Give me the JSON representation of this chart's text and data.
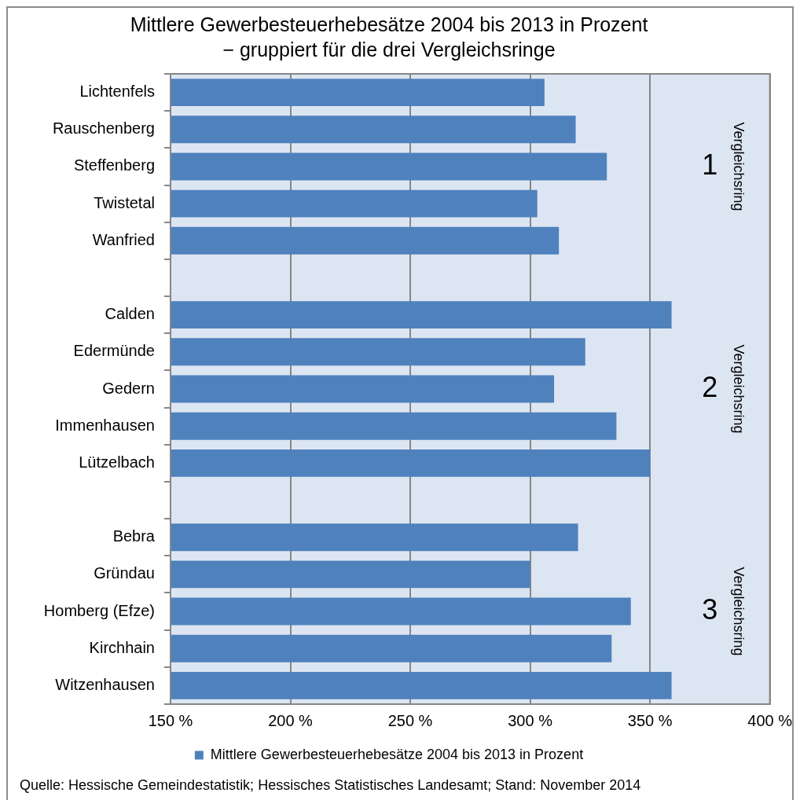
{
  "chart_data": {
    "type": "bar",
    "orientation": "horizontal",
    "title": "Mittlere Gewerbesteuerhebesätze 2004 bis 2013 in Prozent",
    "subtitle": "− gruppiert für die drei Vergleichsringe",
    "categories": [
      "Lichtenfels",
      "Rauschenberg",
      "Steffenberg",
      "Twistetal",
      "Wanfried",
      null,
      "Calden",
      "Edermünde",
      "Gedern",
      "Immenhausen",
      "Lützelbach",
      null,
      "Bebra",
      "Gründau",
      "Homberg (Efze)",
      "Kirchhain",
      "Witzenhausen"
    ],
    "series": [
      {
        "name": "Mittlere Gewerbesteuerhebesätze 2004 bis 2013 in Prozent",
        "color": "#4f81bd",
        "values": [
          306,
          319,
          332,
          303,
          312,
          null,
          359,
          323,
          310,
          336,
          350,
          null,
          320,
          300,
          342,
          334,
          359
        ]
      }
    ],
    "xlim": [
      150,
      400
    ],
    "xticks": [
      {
        "value": 150,
        "label": "150 %"
      },
      {
        "value": 200,
        "label": "200 %"
      },
      {
        "value": 250,
        "label": "250 %"
      },
      {
        "value": 300,
        "label": "300 %"
      },
      {
        "value": 350,
        "label": "350 %"
      },
      {
        "value": 400,
        "label": "400 %"
      }
    ],
    "grid": "x",
    "legend": "bottom",
    "annotations": [
      "1",
      "Vergleichsring",
      "2",
      "Vergleichsring",
      "3",
      "Vergleichsring",
      "Quelle: Hessische Gemeindestatistik; Hessisches Statistisches Landesamt; Stand: November 2014"
    ]
  }
}
